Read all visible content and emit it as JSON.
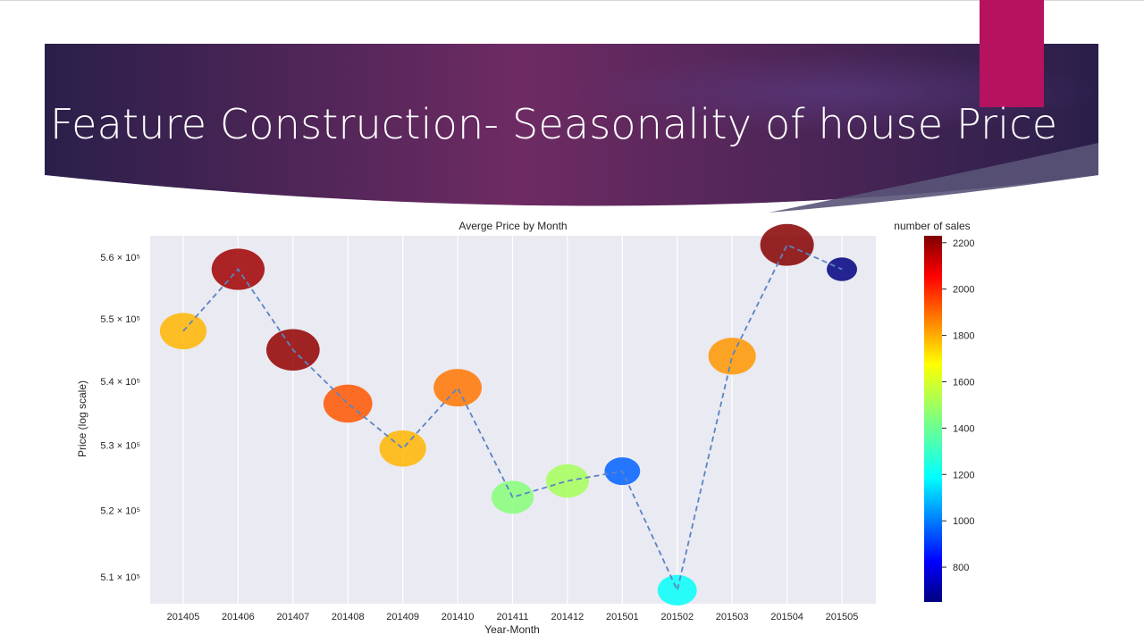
{
  "slide": {
    "title": "Feature Construction- Seasonality of house Price",
    "banner_colors": {
      "dark": "#2a1f4a",
      "mid": "#6e2b63",
      "accent": "#b5135f"
    }
  },
  "chart_data": {
    "type": "scatter",
    "title": "Averge Price by Month",
    "xlabel": "Year-Month",
    "ylabel": "Price (log scale)",
    "y_scale": "log",
    "categories": [
      "201405",
      "201406",
      "201407",
      "201408",
      "201409",
      "201410",
      "201411",
      "201412",
      "201501",
      "201502",
      "201503",
      "201504",
      "201505"
    ],
    "series": [
      {
        "values": [
          548000,
          558000,
          545000,
          536500,
          529500,
          539000,
          522000,
          524500,
          526000,
          508000,
          544000,
          562000,
          558000
        ],
        "number_of_sales": [
          1750,
          2180,
          2200,
          1900,
          1750,
          1850,
          1450,
          1500,
          1000,
          1250,
          1800,
          2220,
          650
        ],
        "line_style": "dashed",
        "line_color": "#5b84c4"
      }
    ],
    "y_ticks": [
      {
        "value": 510000,
        "label": "5.1 × 10⁵"
      },
      {
        "value": 520000,
        "label": "5.2 × 10⁵"
      },
      {
        "value": 530000,
        "label": "5.3 × 10⁵"
      },
      {
        "value": 540000,
        "label": "5.4 × 10⁵"
      },
      {
        "value": 550000,
        "label": "5.5 × 10⁵"
      },
      {
        "value": 560000,
        "label": "5.6 × 10⁵"
      }
    ],
    "ylim": [
      506000,
      563500
    ],
    "grid": true,
    "colorbar": {
      "label": "number of sales",
      "colormap": "jet",
      "range": [
        650,
        2230
      ],
      "ticks": [
        800,
        1000,
        1200,
        1400,
        1600,
        1800,
        2000,
        2200
      ]
    }
  }
}
